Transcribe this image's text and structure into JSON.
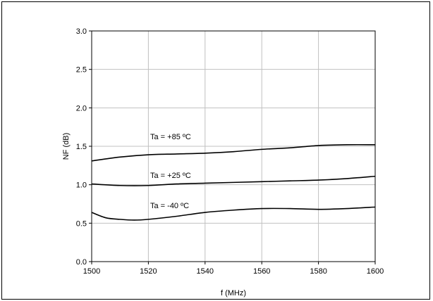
{
  "chart_data": {
    "type": "line",
    "xlabel": "f (MHz)",
    "ylabel": "NF (dB)",
    "xlim": [
      1500,
      1600
    ],
    "ylim": [
      0.0,
      3.0
    ],
    "x_ticks": [
      1500,
      1520,
      1540,
      1560,
      1580,
      1600
    ],
    "x_tick_labels": [
      "1500",
      "1520",
      "1540",
      "1560",
      "1580",
      "1600"
    ],
    "y_ticks": [
      0.0,
      0.5,
      1.0,
      1.5,
      2.0,
      2.5,
      3.0
    ],
    "y_tick_labels": [
      "0.0",
      "0.5",
      "1.0",
      "1.5",
      "2.0",
      "2.5",
      "3.0"
    ],
    "grid": true,
    "legend": "none",
    "line_color": "#000000",
    "grid_color": "#c0c0c0",
    "series": [
      {
        "name": "Ta = +85 ºC",
        "x": [
          1500,
          1510,
          1520,
          1530,
          1540,
          1550,
          1560,
          1570,
          1580,
          1590,
          1600
        ],
        "y": [
          1.31,
          1.36,
          1.39,
          1.4,
          1.41,
          1.43,
          1.46,
          1.48,
          1.51,
          1.52,
          1.52
        ]
      },
      {
        "name": "Ta = +25 ºC",
        "x": [
          1500,
          1510,
          1520,
          1530,
          1540,
          1550,
          1560,
          1570,
          1580,
          1590,
          1600
        ],
        "y": [
          1.01,
          0.99,
          0.99,
          1.01,
          1.02,
          1.03,
          1.04,
          1.05,
          1.06,
          1.08,
          1.11
        ]
      },
      {
        "name": "Ta = -40 ºC",
        "x": [
          1500,
          1505,
          1510,
          1515,
          1520,
          1530,
          1540,
          1550,
          1560,
          1570,
          1580,
          1590,
          1600
        ],
        "y": [
          0.64,
          0.57,
          0.55,
          0.54,
          0.55,
          0.59,
          0.64,
          0.67,
          0.69,
          0.69,
          0.68,
          0.69,
          0.71
        ]
      }
    ]
  }
}
